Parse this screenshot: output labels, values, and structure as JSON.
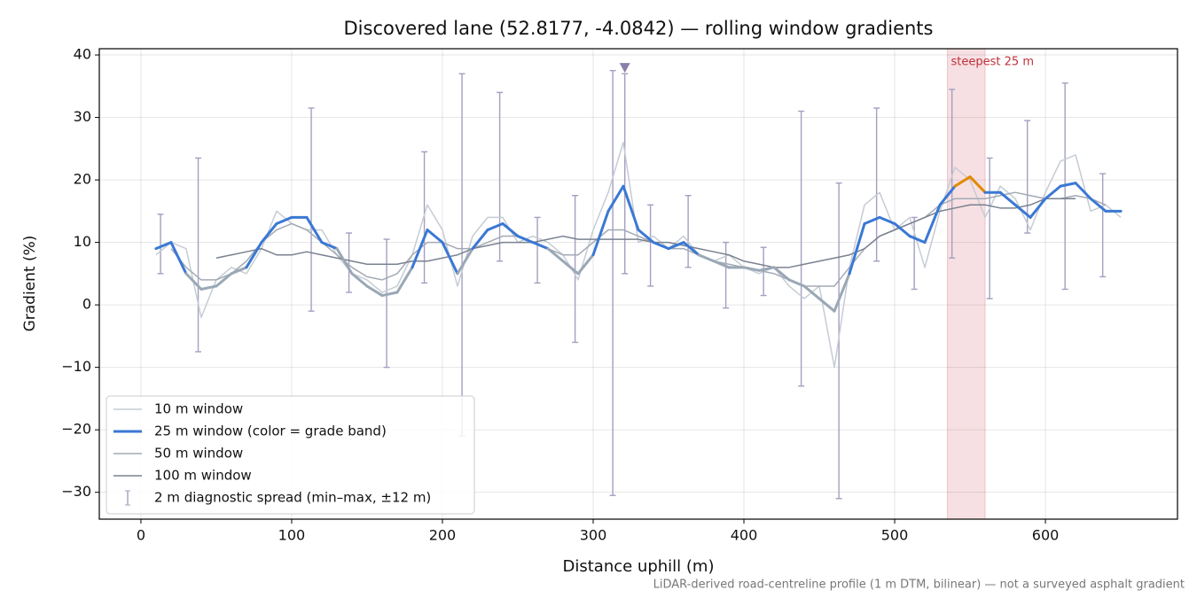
{
  "chart_data": {
    "type": "line",
    "title": "Discovered lane (52.8177, -4.0842) — rolling window gradients",
    "x_label": "Distance uphill (m)",
    "y_label": "Gradient (%)",
    "footnote": "LiDAR-derived road-centreline profile (1 m DTM, bilinear) — not a surveyed asphalt gradient",
    "xlim": [
      -27.6,
      687.6
    ],
    "ylim": [
      -34.3,
      41
    ],
    "xticks": [
      0,
      100,
      200,
      300,
      400,
      500,
      600
    ],
    "yticks": [
      {
        "value": -30,
        "label": "−30"
      },
      {
        "value": -20,
        "label": "−20"
      },
      {
        "value": -10,
        "label": "−10"
      },
      0,
      10,
      20,
      30,
      40
    ],
    "grid": true,
    "legend_position": "lower left",
    "x": [
      10,
      20,
      30,
      40,
      50,
      60,
      70,
      80,
      90,
      100,
      110,
      120,
      130,
      140,
      150,
      160,
      170,
      180,
      190,
      200,
      210,
      220,
      230,
      240,
      250,
      260,
      270,
      280,
      290,
      300,
      310,
      320,
      330,
      340,
      350,
      360,
      370,
      380,
      390,
      400,
      410,
      420,
      430,
      440,
      450,
      460,
      470,
      480,
      490,
      500,
      510,
      520,
      530,
      540,
      550,
      560,
      570,
      580,
      590,
      600,
      610,
      620,
      630,
      640,
      650
    ],
    "series": [
      {
        "name": "10 m window",
        "color": "#c5ccd4",
        "width": 1.5,
        "values": [
          8,
          10,
          9,
          -2,
          4,
          6,
          5,
          9,
          15,
          13,
          12,
          12,
          8,
          5,
          4,
          2,
          3,
          8,
          16,
          12,
          3,
          11,
          14,
          14,
          10,
          11,
          10,
          8,
          4,
          12,
          18,
          26,
          10,
          11,
          9,
          11,
          8,
          7,
          8,
          6,
          5,
          6,
          3,
          1,
          3,
          -10,
          6,
          16,
          18,
          12,
          14,
          6,
          15,
          22,
          20,
          14,
          19,
          17,
          12,
          18,
          23,
          24,
          15,
          16,
          14
        ]
      },
      {
        "name": "25 m window (color = grade band)",
        "color": "#3a78d4",
        "width": 3,
        "grade_bands": [
          {
            "from": -100,
            "color": "#9aa8b5"
          },
          {
            "from": 10,
            "color": "#3a78d4"
          },
          {
            "from": 20,
            "color": "#e08a00"
          }
        ],
        "values": [
          9,
          10,
          5,
          2.5,
          3,
          5,
          6,
          10,
          13,
          14,
          14,
          10,
          9,
          5,
          3,
          1.5,
          2,
          6,
          12,
          10,
          5,
          9,
          12,
          13,
          11,
          10,
          9,
          7,
          5,
          8,
          15,
          19,
          12,
          10,
          9,
          10,
          8,
          7,
          6,
          6,
          5.5,
          6,
          4,
          3,
          1,
          -1,
          5,
          13,
          14,
          13,
          11,
          10,
          16,
          19,
          20.5,
          18,
          18,
          16,
          14,
          17,
          19,
          19.5,
          17,
          15,
          15
        ]
      },
      {
        "name": "50 m window",
        "color": "#a3aab5",
        "width": 1.5,
        "values": [
          null,
          9,
          6,
          4,
          4,
          5,
          7,
          10,
          12,
          13,
          12,
          10,
          8,
          6,
          4.5,
          4,
          5,
          8,
          10,
          10,
          9,
          9,
          10,
          11,
          11,
          10,
          9,
          8,
          8,
          10,
          12,
          12,
          11,
          10,
          9,
          9,
          8,
          7,
          6.5,
          6,
          5.5,
          5,
          4,
          3,
          3,
          3,
          6,
          9,
          11,
          12,
          13,
          14,
          16,
          17,
          17,
          17,
          17.5,
          18,
          17.5,
          17,
          17,
          17.5,
          17,
          16,
          null
        ]
      },
      {
        "name": "100 m window",
        "color": "#7a8290",
        "width": 1.5,
        "values": [
          null,
          null,
          null,
          null,
          7.5,
          8,
          8.5,
          9,
          8,
          8,
          8.5,
          8,
          7.5,
          7,
          6.5,
          6.5,
          6.5,
          7,
          7,
          7.5,
          8,
          9,
          9.5,
          10,
          10,
          10,
          10.5,
          11,
          10.5,
          10.5,
          10.5,
          10.5,
          10.5,
          10,
          10,
          9.5,
          9,
          8.5,
          8,
          7,
          6.5,
          6,
          6,
          6.5,
          7,
          7.5,
          8,
          9,
          11,
          12,
          13,
          14,
          15,
          15.5,
          16,
          16,
          15.5,
          15.5,
          16,
          17,
          17,
          17,
          null,
          null,
          null
        ]
      }
    ],
    "spread": {
      "name": "2 m diagnostic spread (min–max, ±12 m)",
      "color": "#a49fc0",
      "x": [
        13,
        38,
        113,
        138,
        163,
        188,
        213,
        238,
        263,
        288,
        313,
        321,
        338,
        363,
        388,
        413,
        438,
        463,
        488,
        513,
        538,
        563,
        588,
        613,
        638
      ],
      "low": [
        5,
        -7.5,
        -1,
        2,
        -10,
        3.5,
        -21,
        7,
        3.5,
        -6,
        -30.5,
        5,
        3,
        6,
        -0.5,
        1.5,
        -13,
        -31,
        7,
        2.5,
        7.5,
        1,
        11.5,
        2.5,
        4.5
      ],
      "high": [
        14.5,
        23.5,
        31.5,
        11.5,
        10.5,
        24.5,
        37,
        34,
        14,
        17.5,
        37.5,
        37,
        16,
        17.5,
        10,
        9.2,
        31,
        19.5,
        31.5,
        14,
        34.5,
        23.5,
        29.5,
        35.5,
        21
      ]
    },
    "peak_marker": {
      "x": 321,
      "y": 38,
      "color": "#8a7fa8"
    },
    "highlight": {
      "label": "steepest 25 m",
      "x": [
        535,
        560
      ],
      "color": "#e9a6ae"
    }
  }
}
